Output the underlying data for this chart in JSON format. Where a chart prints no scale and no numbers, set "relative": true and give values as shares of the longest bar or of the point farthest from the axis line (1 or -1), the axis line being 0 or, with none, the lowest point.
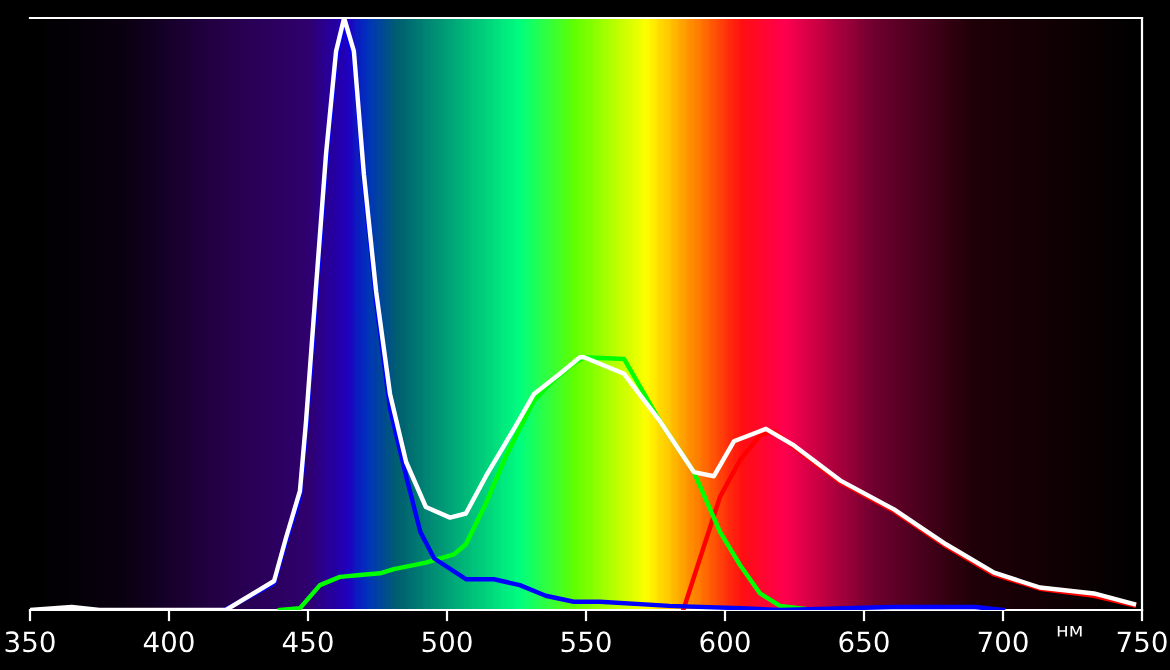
{
  "chart_data": {
    "type": "line",
    "relative": true,
    "xlabel": "нм",
    "xlim": [
      350,
      750
    ],
    "xticks": [
      350,
      400,
      450,
      500,
      550,
      600,
      650,
      700,
      750
    ],
    "grid": false,
    "legend": false,
    "series": [
      {
        "color": "#ffffff",
        "x": [
          350,
          365,
          375,
          420.5,
          437.8,
          442.1,
          447.1,
          449.3,
          452.9,
          456.5,
          460.1,
          463.0,
          466.5,
          470.1,
          474.5,
          479.5,
          485.3,
          492.4,
          501.1,
          506.8,
          514.0,
          524.1,
          531.3,
          540.6,
          547.8,
          549.3,
          563.7,
          576.6,
          588.8,
          596.0,
          603.2,
          614.7,
          624.8,
          641.4,
          660.8,
          679.5,
          696.8,
          713.3,
          732.7,
          747.1
        ],
        "values": [
          0,
          0.005,
          0,
          0,
          0.049,
          0.122,
          0.201,
          0.319,
          0.547,
          0.771,
          0.944,
          1.0,
          0.944,
          0.736,
          0.538,
          0.365,
          0.25,
          0.174,
          0.156,
          0.163,
          0.226,
          0.306,
          0.365,
          0.399,
          0.427,
          0.427,
          0.399,
          0.319,
          0.233,
          0.226,
          0.285,
          0.306,
          0.278,
          0.219,
          0.17,
          0.111,
          0.063,
          0.038,
          0.028,
          0.01
        ]
      },
      {
        "color": "#0000ff",
        "x": [
          420,
          437.8,
          442.1,
          447.1,
          449.3,
          452.9,
          456.5,
          460.1,
          463.0,
          466.5,
          470.1,
          474.5,
          479.5,
          485.3,
          490.4,
          495.4,
          506.8,
          516.9,
          526.2,
          535.5,
          545.6,
          555,
          580,
          606,
          620,
          660,
          690,
          700
        ],
        "values": [
          0,
          0.045,
          0.115,
          0.19,
          0.3,
          0.52,
          0.75,
          0.93,
          0.99,
          0.93,
          0.72,
          0.52,
          0.34,
          0.226,
          0.132,
          0.087,
          0.052,
          0.052,
          0.042,
          0.024,
          0.014,
          0.014,
          0.007,
          0.003,
          0,
          0.005,
          0.005,
          0
        ]
      },
      {
        "color": "#00ff00",
        "x": [
          439.9,
          447.1,
          454.3,
          461.5,
          468.7,
          475.9,
          480.9,
          492.4,
          502.5,
          506.8,
          514.0,
          521.2,
          531.3,
          538.5,
          545.7,
          549.3,
          563.7,
          576.6,
          588.8,
          598.2,
          605.4,
          612.6,
          619.8,
          632.0
        ],
        "values": [
          0,
          0.003,
          0.042,
          0.056,
          0.059,
          0.062,
          0.069,
          0.08,
          0.094,
          0.111,
          0.18,
          0.26,
          0.354,
          0.389,
          0.417,
          0.427,
          0.424,
          0.319,
          0.233,
          0.132,
          0.076,
          0.028,
          0.007,
          0
        ]
      },
      {
        "color": "#ff0000",
        "x": [
          585.0,
          591.0,
          598.2,
          605.4,
          612.6,
          617.6,
          624.8,
          641.4,
          660.8,
          679.5,
          696.8,
          713.3,
          732.7,
          747.1
        ],
        "values": [
          0,
          0.087,
          0.191,
          0.253,
          0.295,
          0.302,
          0.275,
          0.216,
          0.167,
          0.108,
          0.06,
          0.036,
          0.024,
          0.008
        ]
      }
    ]
  }
}
